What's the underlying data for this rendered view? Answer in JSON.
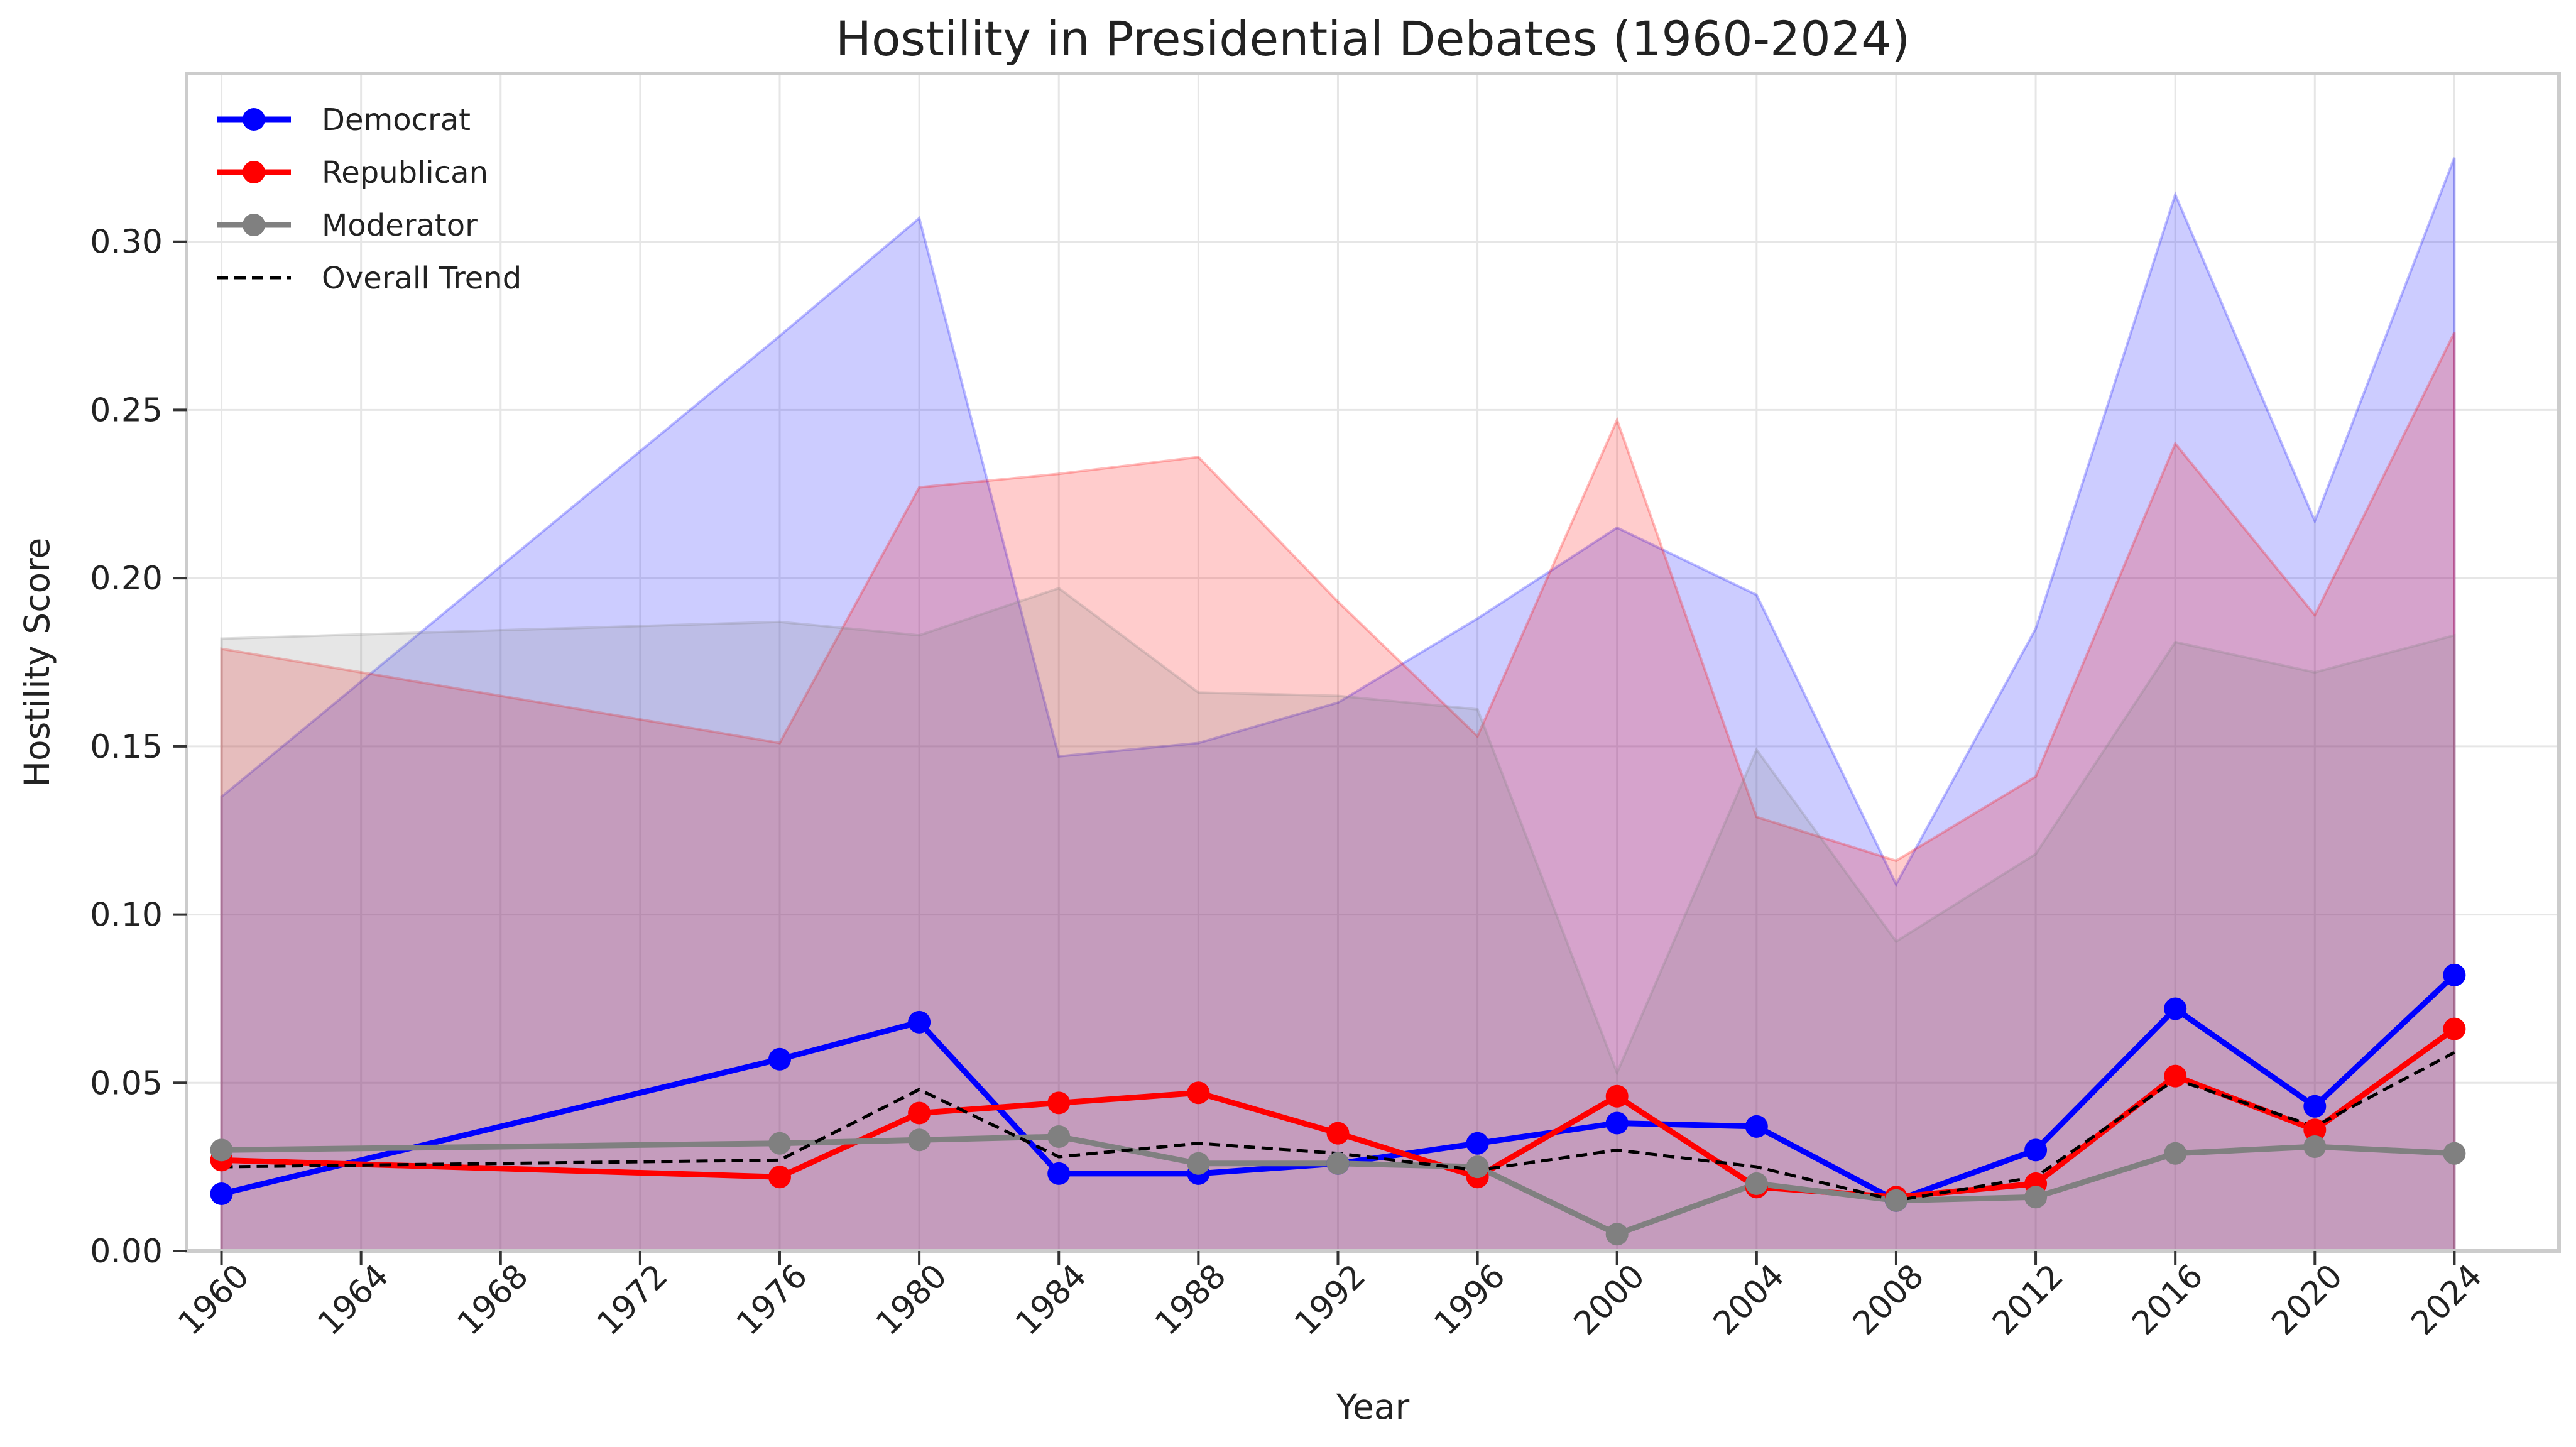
{
  "chart_data": {
    "type": "line",
    "title": "Hostility in Presidential Debates (1960-2024)",
    "xlabel": "Year",
    "ylabel": "Hostility Score",
    "x_ticks": [
      1960,
      1964,
      1968,
      1972,
      1976,
      1980,
      1984,
      1988,
      1992,
      1996,
      2000,
      2004,
      2008,
      2012,
      2016,
      2020,
      2024
    ],
    "y_ticks": [
      0.0,
      0.05,
      0.1,
      0.15,
      0.2,
      0.25,
      0.3
    ],
    "y_tick_labels": [
      "0.00",
      "0.05",
      "0.10",
      "0.15",
      "0.20",
      "0.25",
      "0.30"
    ],
    "xlim": [
      1959,
      2027
    ],
    "ylim": [
      0,
      0.35
    ],
    "grid": true,
    "legend_position": "top-left",
    "x": [
      1960,
      1976,
      1980,
      1984,
      1988,
      1992,
      1996,
      2000,
      2004,
      2008,
      2012,
      2016,
      2020,
      2024
    ],
    "series": [
      {
        "name": "Democrat",
        "color": "#0000ff",
        "style": "solid-marker",
        "values": [
          0.017,
          0.057,
          0.068,
          0.023,
          0.023,
          0.026,
          0.032,
          0.038,
          0.037,
          0.015,
          0.03,
          0.072,
          0.043,
          0.082
        ],
        "band_max": [
          0.135,
          0.272,
          0.307,
          0.147,
          0.151,
          0.163,
          0.188,
          0.215,
          0.195,
          0.109,
          0.185,
          0.314,
          0.217,
          0.325
        ]
      },
      {
        "name": "Republican",
        "color": "#ff0000",
        "style": "solid-marker",
        "values": [
          0.027,
          0.022,
          0.041,
          0.044,
          0.047,
          0.035,
          0.022,
          0.046,
          0.019,
          0.016,
          0.02,
          0.052,
          0.036,
          0.066
        ],
        "band_max": [
          0.179,
          0.151,
          0.227,
          0.231,
          0.236,
          0.193,
          0.153,
          0.247,
          0.129,
          0.116,
          0.141,
          0.24,
          0.189,
          0.273
        ]
      },
      {
        "name": "Moderator",
        "color": "#808080",
        "style": "solid-marker",
        "values": [
          0.03,
          0.032,
          0.033,
          0.034,
          0.026,
          0.026,
          0.025,
          0.005,
          0.02,
          0.015,
          0.016,
          0.029,
          0.031,
          0.029
        ],
        "band_max": [
          0.182,
          0.187,
          0.183,
          0.197,
          0.166,
          0.165,
          0.161,
          0.053,
          0.149,
          0.092,
          0.118,
          0.181,
          0.172,
          0.183
        ]
      },
      {
        "name": "Overall Trend",
        "color": "#000000",
        "style": "dashed",
        "values": [
          0.025,
          0.027,
          0.048,
          0.028,
          0.032,
          0.029,
          0.024,
          0.03,
          0.025,
          0.015,
          0.022,
          0.051,
          0.037,
          0.059
        ]
      }
    ]
  }
}
